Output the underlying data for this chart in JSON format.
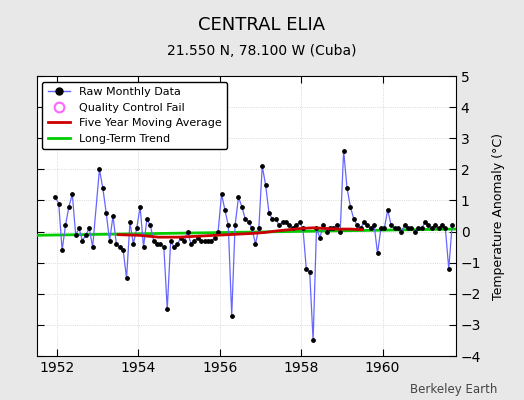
{
  "title": "CENTRAL ELIA",
  "subtitle": "21.550 N, 78.100 W (Cuba)",
  "ylabel": "Temperature Anomaly (°C)",
  "watermark": "Berkeley Earth",
  "xlim": [
    1951.5,
    1961.8
  ],
  "ylim": [
    -4,
    5
  ],
  "yticks": [
    -4,
    -3,
    -2,
    -1,
    0,
    1,
    2,
    3,
    4,
    5
  ],
  "bg_color": "#e8e8e8",
  "plot_bg_color": "#ffffff",
  "line_color": "#6666ff",
  "marker_color": "#000000",
  "ma_color": "#cc0000",
  "trend_color": "#00cc00",
  "raw_data": {
    "times": [
      1951.958,
      1952.042,
      1952.125,
      1952.208,
      1952.292,
      1952.375,
      1952.458,
      1952.542,
      1952.625,
      1952.708,
      1952.792,
      1952.875,
      1953.042,
      1953.125,
      1953.208,
      1953.292,
      1953.375,
      1953.458,
      1953.542,
      1953.625,
      1953.708,
      1953.792,
      1953.875,
      1953.958,
      1954.042,
      1954.125,
      1954.208,
      1954.292,
      1954.375,
      1954.458,
      1954.542,
      1954.625,
      1954.708,
      1954.792,
      1954.875,
      1954.958,
      1955.042,
      1955.125,
      1955.208,
      1955.292,
      1955.375,
      1955.458,
      1955.542,
      1955.625,
      1955.708,
      1955.792,
      1955.875,
      1955.958,
      1956.042,
      1956.125,
      1956.208,
      1956.292,
      1956.375,
      1956.458,
      1956.542,
      1956.625,
      1956.708,
      1956.792,
      1956.875,
      1956.958,
      1957.042,
      1957.125,
      1957.208,
      1957.292,
      1957.375,
      1957.458,
      1957.542,
      1957.625,
      1957.708,
      1957.792,
      1957.875,
      1957.958,
      1958.042,
      1958.125,
      1958.208,
      1958.292,
      1958.375,
      1958.458,
      1958.542,
      1958.625,
      1958.708,
      1958.792,
      1958.875,
      1958.958,
      1959.042,
      1959.125,
      1959.208,
      1959.292,
      1959.375,
      1959.458,
      1959.542,
      1959.625,
      1959.708,
      1959.792,
      1959.875,
      1959.958,
      1960.042,
      1960.125,
      1960.208,
      1960.292,
      1960.375,
      1960.458,
      1960.542,
      1960.625,
      1960.708,
      1960.792,
      1960.875,
      1960.958,
      1961.042,
      1961.125,
      1961.208,
      1961.292,
      1961.375,
      1961.458,
      1961.542,
      1961.625,
      1961.708
    ],
    "values": [
      1.1,
      0.9,
      -0.6,
      0.2,
      0.8,
      1.2,
      -0.1,
      0.1,
      -0.3,
      -0.1,
      0.1,
      -0.5,
      2.0,
      1.4,
      0.6,
      -0.3,
      0.5,
      -0.4,
      -0.5,
      -0.6,
      -1.5,
      0.3,
      -0.4,
      0.1,
      0.8,
      -0.5,
      0.4,
      0.2,
      -0.3,
      -0.4,
      -0.4,
      -0.5,
      -2.5,
      -0.3,
      -0.5,
      -0.4,
      -0.2,
      -0.3,
      0.0,
      -0.4,
      -0.3,
      -0.2,
      -0.3,
      -0.3,
      -0.3,
      -0.3,
      -0.2,
      0.0,
      1.2,
      0.7,
      0.2,
      -2.7,
      0.2,
      1.1,
      0.8,
      0.4,
      0.3,
      0.1,
      -0.4,
      0.1,
      2.1,
      1.5,
      0.6,
      0.4,
      0.4,
      0.2,
      0.3,
      0.3,
      0.2,
      0.1,
      0.2,
      0.3,
      0.1,
      -1.2,
      -1.3,
      -3.5,
      0.1,
      -0.2,
      0.2,
      0.0,
      0.1,
      0.1,
      0.2,
      0.0,
      2.6,
      1.4,
      0.8,
      0.4,
      0.2,
      0.1,
      0.3,
      0.2,
      0.1,
      0.2,
      -0.7,
      0.1,
      0.1,
      0.7,
      0.2,
      0.1,
      0.1,
      0.0,
      0.2,
      0.1,
      0.1,
      0.0,
      0.1,
      0.1,
      0.3,
      0.2,
      0.1,
      0.2,
      0.1,
      0.2,
      0.1,
      -1.2,
      0.2
    ]
  },
  "moving_avg": {
    "times": [
      1953.5,
      1954.0,
      1954.5,
      1955.0,
      1955.3,
      1955.6,
      1955.9,
      1956.2,
      1956.5,
      1956.8,
      1957.1,
      1957.4,
      1957.7,
      1958.0,
      1958.3,
      1958.6,
      1958.9,
      1959.2,
      1959.5
    ],
    "values": [
      -0.1,
      -0.12,
      -0.18,
      -0.18,
      -0.16,
      -0.14,
      -0.12,
      -0.1,
      -0.08,
      -0.06,
      -0.03,
      0.02,
      0.06,
      0.1,
      0.12,
      0.1,
      0.08,
      0.08,
      0.06
    ]
  },
  "trend": {
    "times": [
      1951.5,
      1961.8
    ],
    "values": [
      -0.12,
      0.08
    ]
  },
  "xticks": [
    1952,
    1954,
    1956,
    1958,
    1960
  ],
  "xtick_labels": [
    "1952",
    "1954",
    "1956",
    "1958",
    "1960"
  ]
}
